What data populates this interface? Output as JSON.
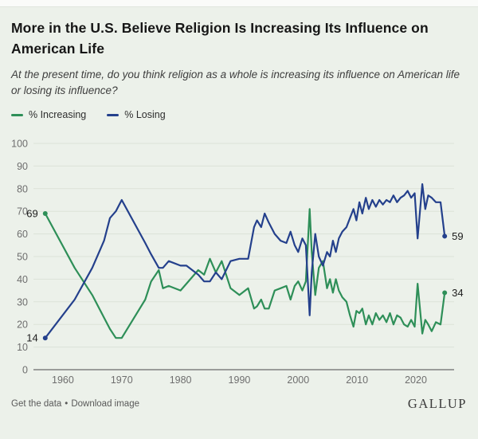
{
  "header": {
    "title": "More in the U.S. Believe Religion Is Increasing Its Influence on American Life",
    "subtitle": "At the present time, do you think religion as a whole is increasing its influence on American life or losing its influence?"
  },
  "legend": {
    "increasing": "% Increasing",
    "losing": "% Losing"
  },
  "colors": {
    "increasing": "#2e8f58",
    "losing": "#24408c",
    "grid": "#dbe2d8",
    "axis": "#6a6a6a",
    "tick_text": "#6e6e6e",
    "label_text": "#1d1d1d",
    "background": "#ecf1ea"
  },
  "chart_data": {
    "type": "line",
    "title": "More in the U.S. Believe Religion Is Increasing Its Influence on American Life",
    "xlabel": "",
    "ylabel": "",
    "xlim": [
      1955,
      2026.5
    ],
    "ylim": [
      0,
      100
    ],
    "x_ticks": [
      1960,
      1970,
      1980,
      1990,
      2000,
      2010,
      2020
    ],
    "y_ticks": [
      0,
      10,
      20,
      30,
      40,
      50,
      60,
      70,
      80,
      90,
      100
    ],
    "grid": "horizontal",
    "legend_position": "top-left",
    "series": [
      {
        "name": "% Increasing",
        "color": "increasing",
        "points": [
          [
            1957,
            69
          ],
          [
            1962,
            45
          ],
          [
            1965,
            33
          ],
          [
            1967,
            23
          ],
          [
            1968,
            18
          ],
          [
            1969,
            14
          ],
          [
            1970,
            14
          ],
          [
            1974,
            31
          ],
          [
            1975,
            39
          ],
          [
            1976.3,
            44
          ],
          [
            1977,
            36
          ],
          [
            1978,
            37
          ],
          [
            1980,
            35
          ],
          [
            1981,
            38
          ],
          [
            1983,
            44
          ],
          [
            1984,
            42
          ],
          [
            1985,
            49
          ],
          [
            1986,
            43
          ],
          [
            1987,
            48
          ],
          [
            1988.5,
            36
          ],
          [
            1990,
            33
          ],
          [
            1991.5,
            36
          ],
          [
            1992.5,
            27
          ],
          [
            1993,
            28
          ],
          [
            1993.7,
            31
          ],
          [
            1994.3,
            27
          ],
          [
            1995,
            27
          ],
          [
            1996,
            35
          ],
          [
            1997,
            36
          ],
          [
            1998,
            37
          ],
          [
            1998.7,
            31
          ],
          [
            1999.4,
            37
          ],
          [
            2000,
            39
          ],
          [
            2000.7,
            35
          ],
          [
            2001.3,
            39
          ],
          [
            2001.95,
            71
          ],
          [
            2002.3,
            52
          ],
          [
            2002.9,
            33
          ],
          [
            2003.5,
            45
          ],
          [
            2004.2,
            48
          ],
          [
            2004.9,
            36
          ],
          [
            2005.4,
            40
          ],
          [
            2005.9,
            34
          ],
          [
            2006.4,
            40
          ],
          [
            2006.9,
            35
          ],
          [
            2007.5,
            32
          ],
          [
            2008.2,
            30
          ],
          [
            2008.8,
            24
          ],
          [
            2009.4,
            19
          ],
          [
            2009.9,
            26
          ],
          [
            2010.4,
            25
          ],
          [
            2010.9,
            27
          ],
          [
            2011.5,
            20
          ],
          [
            2012,
            24
          ],
          [
            2012.6,
            20
          ],
          [
            2013.2,
            25
          ],
          [
            2013.8,
            22
          ],
          [
            2014.4,
            24
          ],
          [
            2015,
            21
          ],
          [
            2015.6,
            25
          ],
          [
            2016.2,
            20
          ],
          [
            2016.8,
            24
          ],
          [
            2017.4,
            23
          ],
          [
            2018,
            20
          ],
          [
            2018.6,
            19
          ],
          [
            2019.2,
            22
          ],
          [
            2019.8,
            19
          ],
          [
            2020.3,
            38
          ],
          [
            2021.1,
            16
          ],
          [
            2021.6,
            22
          ],
          [
            2022.1,
            20
          ],
          [
            2022.7,
            17
          ],
          [
            2023.4,
            21
          ],
          [
            2024.2,
            20
          ],
          [
            2024.9,
            34
          ]
        ]
      },
      {
        "name": "% Losing",
        "color": "losing",
        "points": [
          [
            1957,
            14
          ],
          [
            1962,
            31
          ],
          [
            1965,
            45
          ],
          [
            1967,
            57
          ],
          [
            1968,
            67
          ],
          [
            1969,
            70
          ],
          [
            1970,
            75
          ],
          [
            1974,
            56
          ],
          [
            1975,
            51
          ],
          [
            1976.3,
            45
          ],
          [
            1977,
            45
          ],
          [
            1978,
            48
          ],
          [
            1980,
            46
          ],
          [
            1981,
            46
          ],
          [
            1983,
            42
          ],
          [
            1984,
            39
          ],
          [
            1985,
            39
          ],
          [
            1986,
            43
          ],
          [
            1987,
            40
          ],
          [
            1988.5,
            48
          ],
          [
            1990,
            49
          ],
          [
            1991.5,
            49
          ],
          [
            1992.5,
            63
          ],
          [
            1993,
            66
          ],
          [
            1993.7,
            63
          ],
          [
            1994.3,
            69
          ],
          [
            1995,
            65
          ],
          [
            1996,
            60
          ],
          [
            1997,
            57
          ],
          [
            1998,
            56
          ],
          [
            1998.7,
            61
          ],
          [
            1999.4,
            55
          ],
          [
            2000,
            52
          ],
          [
            2000.7,
            58
          ],
          [
            2001.3,
            55
          ],
          [
            2001.95,
            24
          ],
          [
            2002.3,
            43
          ],
          [
            2002.9,
            60
          ],
          [
            2003.5,
            50
          ],
          [
            2004.2,
            46
          ],
          [
            2004.9,
            52
          ],
          [
            2005.4,
            50
          ],
          [
            2005.9,
            57
          ],
          [
            2006.4,
            52
          ],
          [
            2006.9,
            58
          ],
          [
            2007.5,
            61
          ],
          [
            2008.2,
            63
          ],
          [
            2008.8,
            67
          ],
          [
            2009.4,
            71
          ],
          [
            2009.9,
            66
          ],
          [
            2010.4,
            74
          ],
          [
            2010.9,
            69
          ],
          [
            2011.5,
            76
          ],
          [
            2012,
            71
          ],
          [
            2012.6,
            75
          ],
          [
            2013.2,
            72
          ],
          [
            2013.8,
            75
          ],
          [
            2014.4,
            73
          ],
          [
            2015,
            75
          ],
          [
            2015.6,
            74
          ],
          [
            2016.2,
            77
          ],
          [
            2016.8,
            74
          ],
          [
            2017.4,
            76
          ],
          [
            2018,
            77
          ],
          [
            2018.6,
            79
          ],
          [
            2019.2,
            76
          ],
          [
            2019.8,
            78
          ],
          [
            2020.3,
            58
          ],
          [
            2021.1,
            82
          ],
          [
            2021.6,
            71
          ],
          [
            2022.1,
            77
          ],
          [
            2022.7,
            76
          ],
          [
            2023.4,
            74
          ],
          [
            2024.2,
            74
          ],
          [
            2024.9,
            59
          ]
        ]
      }
    ],
    "annotations": [
      {
        "series": "% Increasing",
        "position": "start",
        "text": "69"
      },
      {
        "series": "% Losing",
        "position": "start",
        "text": "14"
      },
      {
        "series": "% Losing",
        "position": "end",
        "text": "59"
      },
      {
        "series": "% Increasing",
        "position": "end",
        "text": "34"
      }
    ]
  },
  "footer": {
    "get_data": "Get the data",
    "separator": "•",
    "download": "Download image",
    "brand": "GALLUP"
  }
}
